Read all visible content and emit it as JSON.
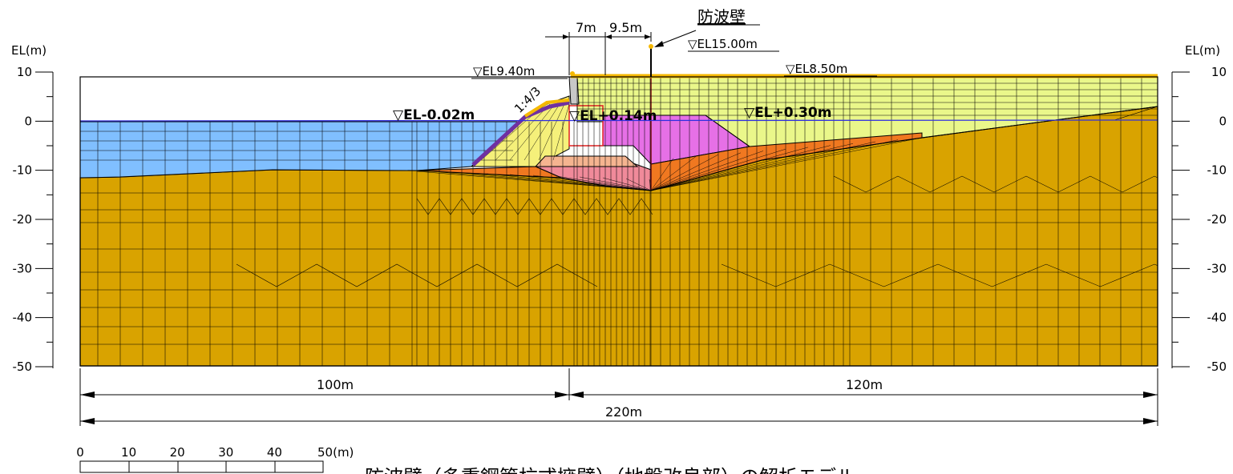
{
  "labels": {
    "wall_title": "防波壁",
    "el_wall_top": "▽EL15.00m",
    "el_crest": "▽EL9.40m",
    "el_ground": "▽EL8.50m",
    "wl_sea": "▽EL-0.02m",
    "wl_mid": "▽EL+0.14m",
    "wl_land": "▽EL+0.30m",
    "slope": "1:4/3",
    "dim_7m": "7m",
    "dim_9_5m": "9.5m",
    "dim_100m": "100m",
    "dim_120m": "120m",
    "dim_220m": "220m",
    "axis_left": "EL(m)",
    "axis_right": "EL(m)",
    "scale_unit": "50(m)",
    "caption": "防波壁（多重鋼管杭式擁壁）（地盤改良部）の解析モデル"
  },
  "axis_ticks": [
    "10",
    "0",
    "-10",
    "-20",
    "-30",
    "-40",
    "-50"
  ],
  "scale_ticks": [
    "0",
    "10",
    "20",
    "30",
    "40"
  ],
  "colors": {
    "sea": "#80bfff",
    "bedrock": "#d9a300",
    "backfill": "#eaf78a",
    "mound": "#f5f07a",
    "improved_soil": "#e670e6",
    "weak_layer": "#f07820",
    "rubble": "#f5b490",
    "pink_zone": "#f08a9a",
    "armor": "#7030a0",
    "pavement": "#f5b800",
    "waterline": "#3030e0",
    "grid": "#000000"
  }
}
